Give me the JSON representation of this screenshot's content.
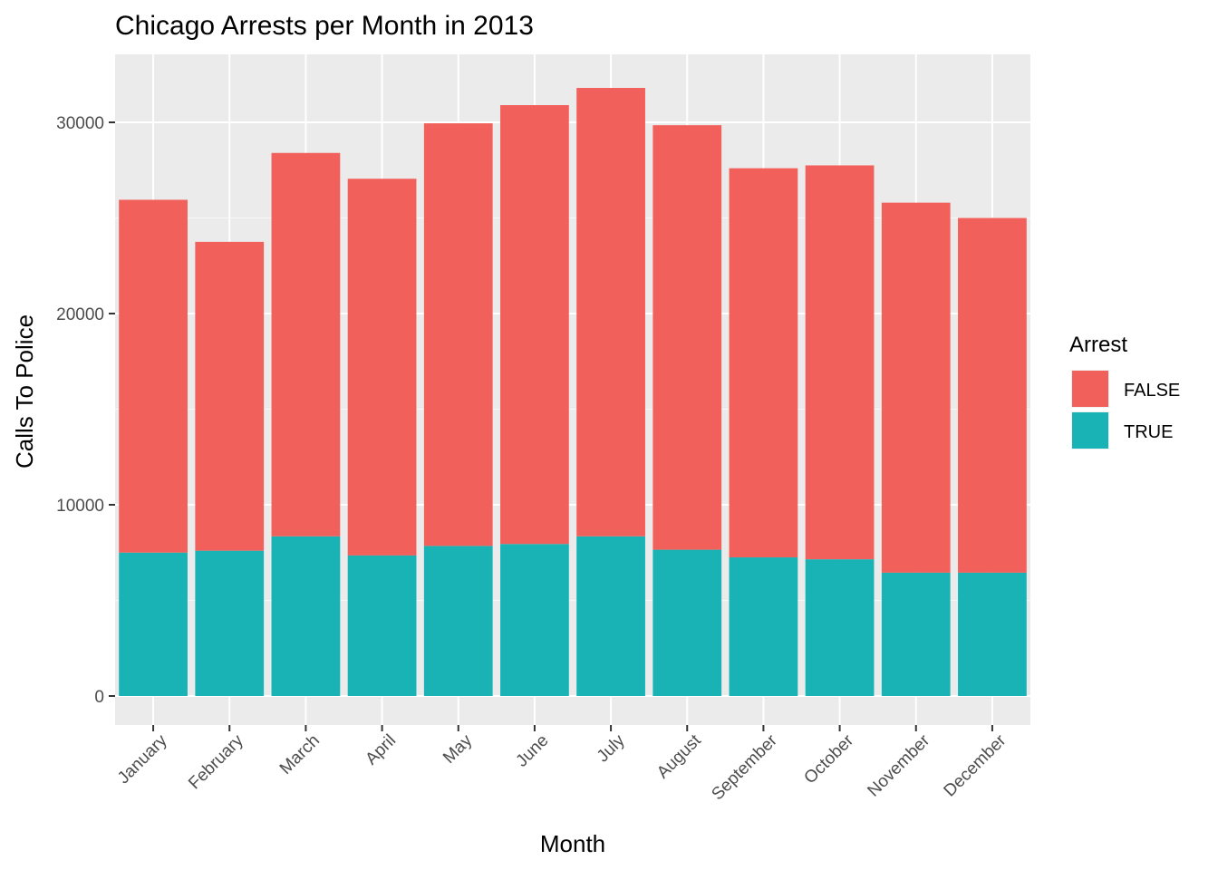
{
  "chart_data": {
    "type": "bar",
    "stacked": true,
    "title": "Chicago Arrests per Month in 2013",
    "xlabel": "Month",
    "ylabel": "Calls To Police",
    "ylim": [
      0,
      33500
    ],
    "yticks": [
      0,
      10000,
      20000,
      30000
    ],
    "ytick_labels": [
      "0",
      "10000",
      "20000",
      "30000"
    ],
    "grid": true,
    "categories": [
      "January",
      "February",
      "March",
      "April",
      "May",
      "June",
      "July",
      "August",
      "September",
      "October",
      "November",
      "December"
    ],
    "legend": {
      "title": "Arrest",
      "position": "right"
    },
    "series": [
      {
        "name": "TRUE",
        "color": "#19B3B6",
        "values": [
          7500,
          7600,
          8350,
          7350,
          7850,
          7950,
          8350,
          7650,
          7250,
          7150,
          6450,
          6450
        ]
      },
      {
        "name": "FALSE",
        "color": "#F2605C",
        "values": [
          18450,
          16150,
          20050,
          19700,
          22100,
          22950,
          23450,
          22200,
          20350,
          20600,
          19350,
          18550
        ]
      }
    ],
    "legend_order": [
      "FALSE",
      "TRUE"
    ]
  }
}
